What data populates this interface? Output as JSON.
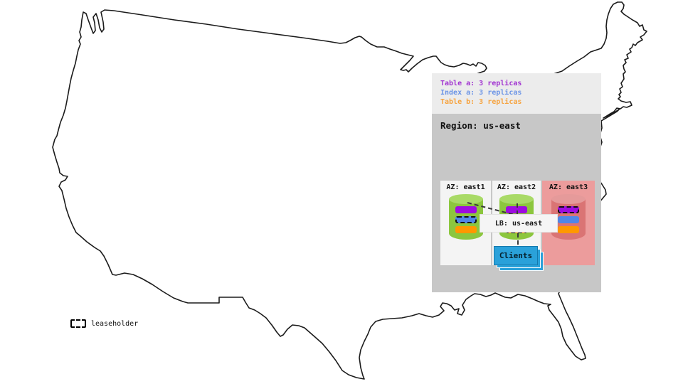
{
  "legend": {
    "items": [
      {
        "label": "Table a: 3 replicas",
        "color": "#a133d1"
      },
      {
        "label": "Index a: 3 replicas",
        "color": "#6b94e6"
      },
      {
        "label": "Table b: 3 replicas",
        "color": "#f6a33f"
      }
    ]
  },
  "region": {
    "title": "Region: us-east",
    "azs": [
      {
        "name": "AZ: east1",
        "status": "available",
        "box_color": "#f4f4f4",
        "cyl_top": "#a9da67",
        "cyl_body": "#8cc63e",
        "bars": [
          {
            "replica": "table-a",
            "color": "#9d0be0",
            "leaseholder": false
          },
          {
            "replica": "index-a",
            "color": "#4f86e8",
            "leaseholder": true
          },
          {
            "replica": "table-b",
            "color": "#ff9800",
            "leaseholder": false
          }
        ]
      },
      {
        "name": "AZ: east2",
        "status": "available",
        "box_color": "#f4f4f4",
        "cyl_top": "#a9da67",
        "cyl_body": "#8cc63e",
        "bars": [
          {
            "replica": "table-a",
            "color": "#9d0be0",
            "leaseholder": false
          },
          {
            "replica": "index-a",
            "color": "#4f86e8",
            "leaseholder": false
          },
          {
            "replica": "table-b",
            "color": "#ff9800",
            "leaseholder": true
          }
        ]
      },
      {
        "name": "AZ: east3",
        "status": "unavailable",
        "box_color": "#ec9c9c",
        "cyl_top": "#e59a9a",
        "cyl_body": "#da7474",
        "bars": [
          {
            "replica": "table-a",
            "color": "#9d0be0",
            "leaseholder": true
          },
          {
            "replica": "index-a",
            "color": "#4f86e8",
            "leaseholder": false
          },
          {
            "replica": "table-b",
            "color": "#ff9800",
            "leaseholder": false
          }
        ]
      }
    ],
    "lb_label": "LB: us-east",
    "clients_label": "Clients"
  },
  "map_key": {
    "leaseholder_label": "leaseholder"
  }
}
